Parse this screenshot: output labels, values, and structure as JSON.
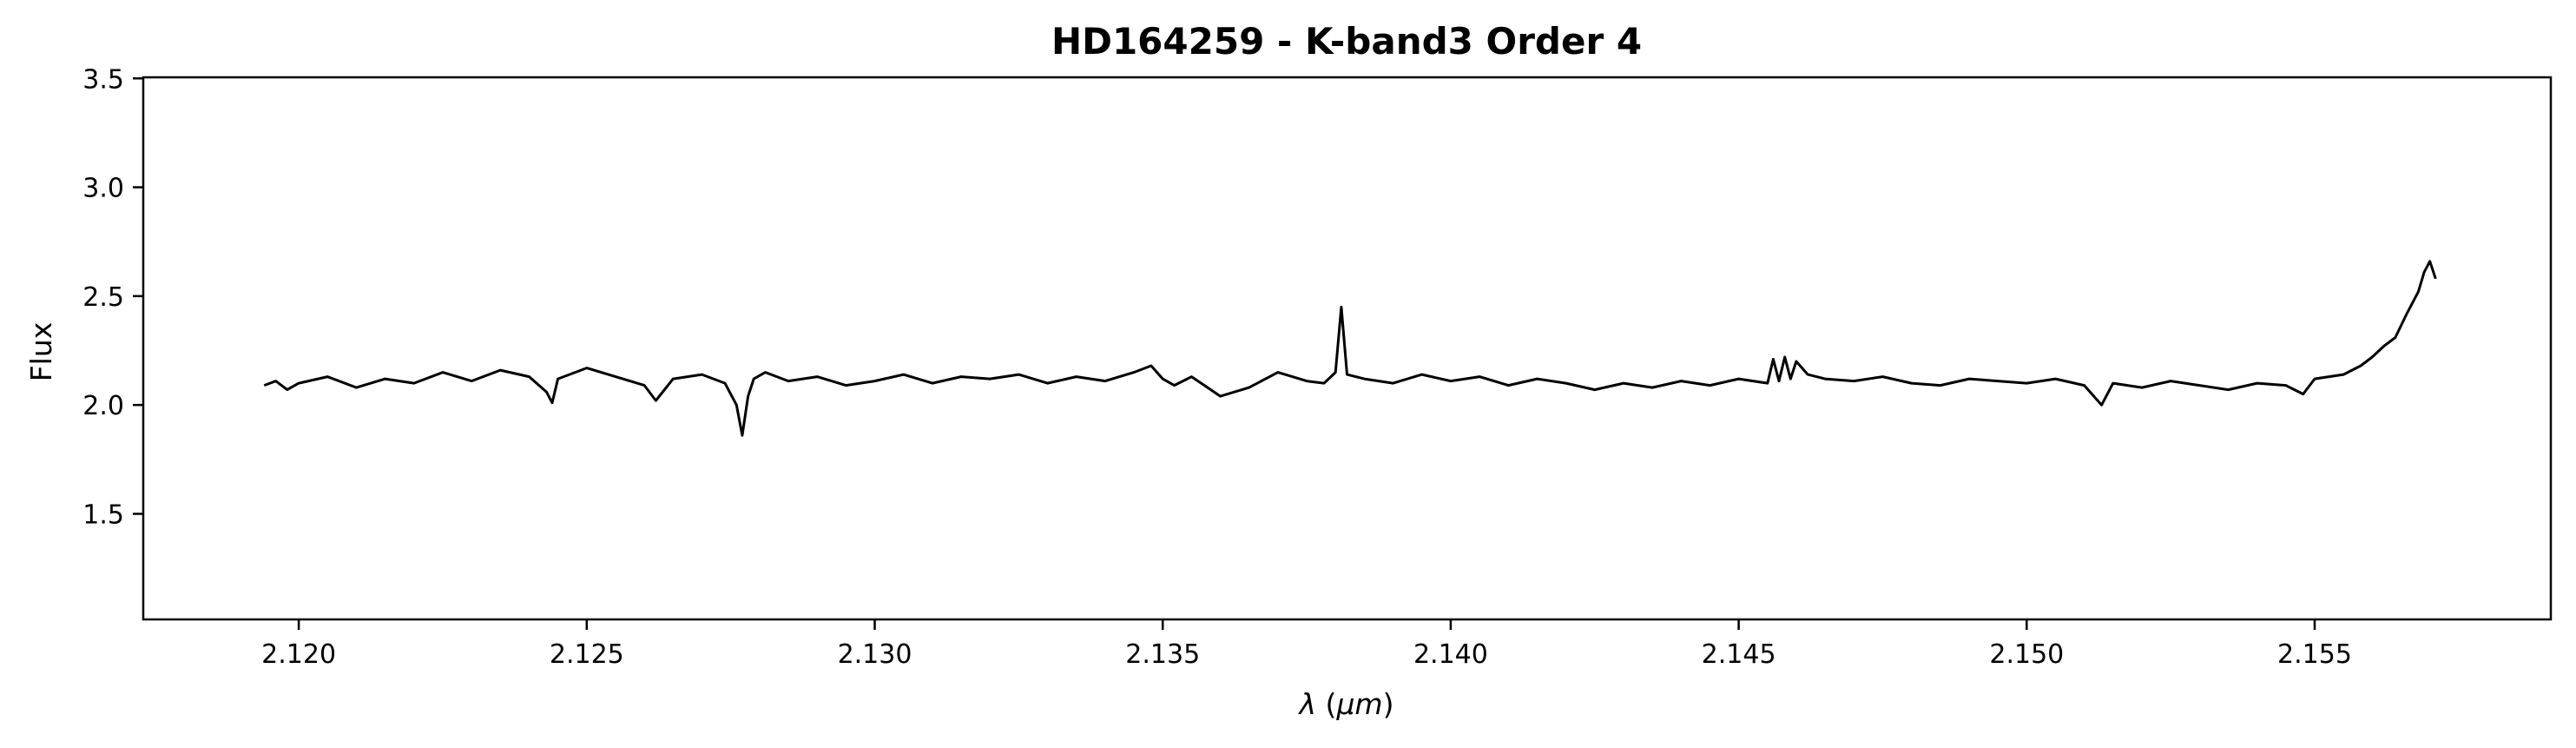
{
  "chart_data": {
    "type": "line",
    "title": "HD164259 - K-band3 Order 4",
    "xlabel_symbol": "λ",
    "xlabel_unit": "μm",
    "ylabel": "Flux",
    "xlim": [
      2.1173,
      2.1591
    ],
    "ylim": [
      1.015,
      3.505
    ],
    "xticks": [
      2.12,
      2.125,
      2.13,
      2.135,
      2.14,
      2.145,
      2.15,
      2.155
    ],
    "xtick_labels": [
      "2.120",
      "2.125",
      "2.130",
      "2.135",
      "2.140",
      "2.145",
      "2.150",
      "2.155"
    ],
    "yticks": [
      1.5,
      2.0,
      2.5,
      3.0,
      3.5
    ],
    "ytick_labels": [
      "1.5",
      "2.0",
      "2.5",
      "3.0",
      "3.5"
    ],
    "grid": false,
    "line_color": "#000000",
    "series": [
      {
        "x": [
          2.1194,
          2.1196,
          2.1198,
          2.12,
          2.1205,
          2.121,
          2.1215,
          2.122,
          2.1225,
          2.123,
          2.1235,
          2.124,
          2.1243,
          2.1244,
          2.1245,
          2.125,
          2.1255,
          2.126,
          2.1262,
          2.1265,
          2.127,
          2.1274,
          2.1276,
          2.1277,
          2.1278,
          2.1279,
          2.1281,
          2.1285,
          2.129,
          2.1295,
          2.13,
          2.1305,
          2.131,
          2.1315,
          2.132,
          2.1325,
          2.133,
          2.1335,
          2.134,
          2.1345,
          2.1348,
          2.135,
          2.1352,
          2.1355,
          2.136,
          2.1365,
          2.137,
          2.1375,
          2.1378,
          2.138,
          2.1381,
          2.1382,
          2.1385,
          2.139,
          2.1395,
          2.14,
          2.1405,
          2.141,
          2.1415,
          2.142,
          2.1425,
          2.143,
          2.1435,
          2.144,
          2.1445,
          2.145,
          2.1455,
          2.1456,
          2.1457,
          2.1458,
          2.1459,
          2.146,
          2.1462,
          2.1465,
          2.147,
          2.1475,
          2.148,
          2.1485,
          2.149,
          2.1495,
          2.15,
          2.1505,
          2.151,
          2.1513,
          2.1515,
          2.152,
          2.1525,
          2.153,
          2.1535,
          2.154,
          2.1545,
          2.1548,
          2.155,
          2.1555,
          2.1558,
          2.156,
          2.1562,
          2.1564,
          2.1566,
          2.1568,
          2.1569,
          2.157,
          2.1571
        ],
        "y": [
          2.09,
          2.11,
          2.07,
          2.1,
          2.13,
          2.08,
          2.12,
          2.1,
          2.15,
          2.11,
          2.16,
          2.13,
          2.06,
          2.01,
          2.12,
          2.17,
          2.13,
          2.09,
          2.02,
          2.12,
          2.14,
          2.1,
          2.0,
          1.86,
          2.04,
          2.12,
          2.15,
          2.11,
          2.13,
          2.09,
          2.11,
          2.14,
          2.1,
          2.13,
          2.12,
          2.14,
          2.1,
          2.13,
          2.11,
          2.15,
          2.18,
          2.12,
          2.09,
          2.13,
          2.04,
          2.08,
          2.15,
          2.11,
          2.1,
          2.15,
          2.45,
          2.14,
          2.12,
          2.1,
          2.14,
          2.11,
          2.13,
          2.09,
          2.12,
          2.1,
          2.07,
          2.1,
          2.08,
          2.11,
          2.09,
          2.12,
          2.1,
          2.21,
          2.11,
          2.22,
          2.12,
          2.2,
          2.14,
          2.12,
          2.11,
          2.13,
          2.1,
          2.09,
          2.12,
          2.11,
          2.1,
          2.12,
          2.09,
          2.0,
          2.1,
          2.08,
          2.11,
          2.09,
          2.07,
          2.1,
          2.09,
          2.05,
          2.12,
          2.14,
          2.18,
          2.22,
          2.27,
          2.31,
          2.42,
          2.52,
          2.61,
          2.66,
          2.58
        ]
      }
    ]
  }
}
